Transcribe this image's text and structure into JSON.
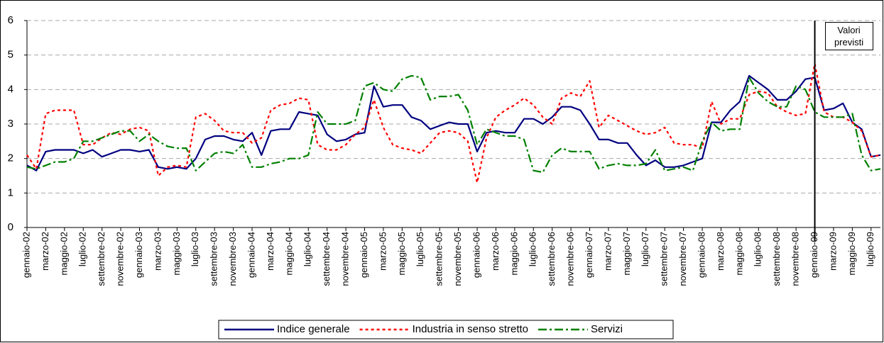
{
  "chart_data": {
    "type": "line",
    "categories": [
      "gennaio-02",
      null,
      "marzo-02",
      null,
      "maggio-02",
      null,
      "luglio-02",
      null,
      "settembre-02",
      null,
      "novembre-02",
      null,
      "gennaio-03",
      null,
      "marzo-03",
      null,
      "maggio-03",
      null,
      "luglio-03",
      null,
      "settembre-03",
      null,
      "novembre-03",
      null,
      "gennaio-04",
      null,
      "marzo-04",
      null,
      "maggio-04",
      null,
      "luglio-04",
      null,
      "settembre-04",
      null,
      "novembre-04",
      null,
      "gennaio-05",
      null,
      "marzo-05",
      null,
      "maggio-05",
      null,
      "luglio-05",
      null,
      "settembre-05",
      null,
      "novembre-05",
      null,
      "gennaio-06",
      null,
      "marzo-06",
      null,
      "maggio-06",
      null,
      "luglio-06",
      null,
      "settembre-06",
      null,
      "novembre-06",
      null,
      "gennaio-07",
      null,
      "marzo-07",
      null,
      "maggio-07",
      null,
      "luglio-07",
      null,
      "settembre-07",
      null,
      "novembre-07",
      null,
      "gennaio-08",
      null,
      "marzo-08",
      null,
      "maggio-08",
      null,
      "luglio-08",
      null,
      "settembre-08",
      null,
      "novembre-08",
      null,
      "gennaio-09",
      null,
      "marzo-09",
      null,
      "maggio-09",
      null,
      "luglio-09",
      null
    ],
    "series": [
      {
        "name": "Indice generale",
        "color": "#000080",
        "dash": "solid",
        "values": [
          1.8,
          1.65,
          2.2,
          2.25,
          2.25,
          2.25,
          2.15,
          2.25,
          2.05,
          2.15,
          2.25,
          2.25,
          2.2,
          2.25,
          1.75,
          1.7,
          1.75,
          1.7,
          2.0,
          2.55,
          2.65,
          2.65,
          2.55,
          2.5,
          2.75,
          2.1,
          2.8,
          2.85,
          2.85,
          3.35,
          3.3,
          3.25,
          2.7,
          2.5,
          2.55,
          2.7,
          2.75,
          4.1,
          3.5,
          3.55,
          3.55,
          3.2,
          3.1,
          2.85,
          2.95,
          3.05,
          3.0,
          3.0,
          2.2,
          2.75,
          2.8,
          2.75,
          2.75,
          3.15,
          3.15,
          3.0,
          3.2,
          3.5,
          3.5,
          3.4,
          3.0,
          2.55,
          2.55,
          2.45,
          2.45,
          2.1,
          1.8,
          1.95,
          1.75,
          1.75,
          1.8,
          1.9,
          2.0,
          3.05,
          3.05,
          3.4,
          3.65,
          4.4,
          4.2,
          4.0,
          3.7,
          3.7,
          3.95,
          4.3,
          4.35,
          3.4,
          3.45,
          3.6,
          3.05,
          2.85,
          2.05,
          2.1
        ]
      },
      {
        "name": "Industria in senso stretto",
        "color": "#ff0000",
        "dash": "dotted",
        "values": [
          2.1,
          1.7,
          3.3,
          3.4,
          3.4,
          3.4,
          2.4,
          2.4,
          2.6,
          2.75,
          2.7,
          2.85,
          2.9,
          2.8,
          1.5,
          1.75,
          1.8,
          1.75,
          3.2,
          3.3,
          3.1,
          2.8,
          2.75,
          2.75,
          2.45,
          2.6,
          3.4,
          3.55,
          3.6,
          3.75,
          3.7,
          2.4,
          2.25,
          2.25,
          2.4,
          2.7,
          2.9,
          3.7,
          2.9,
          2.4,
          2.3,
          2.25,
          2.15,
          2.45,
          2.75,
          2.8,
          2.75,
          2.5,
          1.3,
          2.6,
          3.2,
          3.4,
          3.55,
          3.75,
          3.55,
          3.2,
          3.0,
          3.75,
          3.9,
          3.8,
          4.25,
          2.9,
          3.25,
          3.1,
          2.95,
          2.8,
          2.7,
          2.75,
          2.9,
          2.45,
          2.4,
          2.4,
          2.3,
          3.65,
          3.0,
          3.15,
          3.15,
          3.85,
          3.95,
          3.9,
          3.5,
          3.35,
          3.25,
          3.3,
          4.75,
          3.35,
          3.2,
          3.2,
          3.05,
          2.8,
          2.05,
          2.1
        ]
      },
      {
        "name": "Servizi",
        "color": "#008000",
        "dash": "dashdot",
        "values": [
          1.75,
          1.7,
          1.8,
          1.9,
          1.9,
          2.0,
          2.5,
          2.5,
          2.6,
          2.7,
          2.8,
          2.8,
          2.5,
          2.7,
          2.5,
          2.35,
          2.3,
          2.3,
          1.65,
          1.9,
          2.15,
          2.2,
          2.15,
          2.4,
          1.75,
          1.75,
          1.85,
          1.9,
          2.0,
          2.0,
          2.1,
          3.35,
          3.0,
          3.0,
          3.0,
          3.1,
          4.1,
          4.2,
          4.0,
          3.95,
          4.3,
          4.4,
          4.35,
          3.7,
          3.8,
          3.8,
          3.85,
          3.4,
          2.4,
          2.85,
          2.75,
          2.65,
          2.65,
          2.55,
          1.65,
          1.6,
          2.1,
          2.3,
          2.2,
          2.2,
          2.2,
          1.7,
          1.8,
          1.85,
          1.8,
          1.8,
          1.85,
          2.25,
          1.65,
          1.7,
          1.75,
          1.65,
          2.5,
          3.05,
          2.8,
          2.85,
          2.85,
          4.35,
          3.9,
          3.65,
          3.5,
          3.5,
          4.1,
          4.0,
          3.35,
          3.2,
          3.2,
          3.2,
          3.3,
          2.1,
          1.65,
          1.7
        ]
      }
    ],
    "ylim": [
      0,
      6
    ],
    "yticks": [
      0,
      1,
      2,
      3,
      4,
      5,
      6
    ],
    "grid": true,
    "legend": "bottom",
    "annotation": {
      "text": "Valori previsti",
      "category": "gennaio-09"
    }
  }
}
